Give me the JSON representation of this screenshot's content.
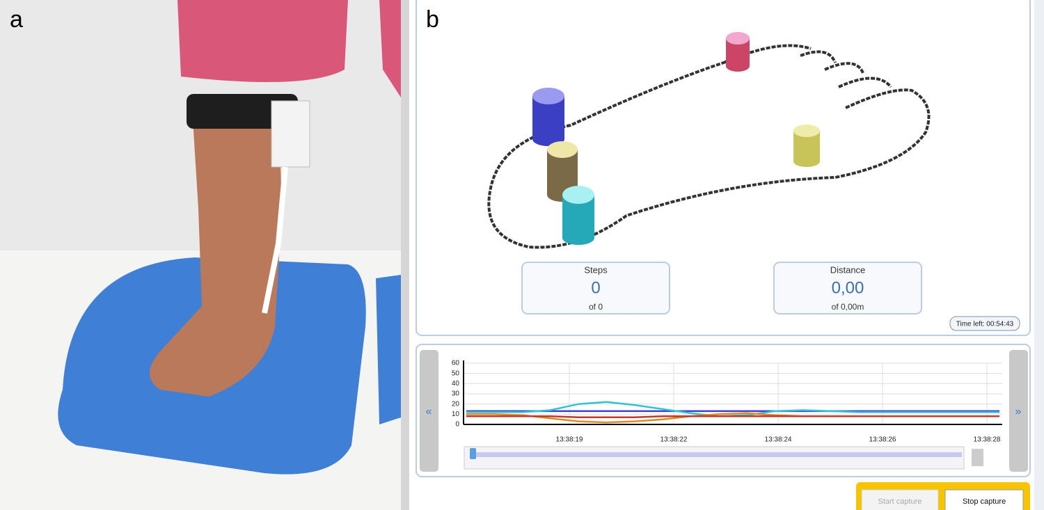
{
  "panel_labels": {
    "a": "a",
    "b": "b"
  },
  "steps": {
    "title": "Steps",
    "value": "0",
    "sub": "of 0"
  },
  "distance": {
    "title": "Distance",
    "value": "0,00",
    "sub": "of 0,00m"
  },
  "time_left": "Time left: 00:54:43",
  "plot": {
    "ylim": [
      0,
      60
    ],
    "yticks": [
      0,
      10,
      20,
      30,
      40,
      50,
      60
    ],
    "categories": [
      "13:38:19",
      "13:38:22",
      "13:38:24",
      "13:38:26",
      "13:38:28"
    ],
    "series": [
      {
        "color": "#3a3fd0",
        "values": [
          13,
          13,
          13,
          13,
          13,
          13,
          13,
          13,
          13,
          13,
          13,
          13,
          13,
          13,
          13,
          13,
          13,
          13,
          13,
          13
        ]
      },
      {
        "color": "#2ec4d6",
        "values": [
          12,
          12,
          12,
          14,
          20,
          22,
          19,
          15,
          11,
          8,
          9,
          13,
          14,
          13,
          12,
          12,
          12,
          12,
          12,
          12
        ]
      },
      {
        "color": "#e08a1e",
        "values": [
          10,
          10,
          9,
          6,
          3,
          2,
          3,
          5,
          8,
          10,
          11,
          9,
          8,
          8,
          8,
          8,
          8,
          8,
          8,
          8
        ]
      },
      {
        "color": "#c0392b",
        "values": [
          8,
          8,
          8,
          8,
          7,
          7,
          7,
          8,
          8,
          8,
          8,
          8,
          8,
          8,
          8,
          8,
          8,
          8,
          8,
          8
        ]
      }
    ]
  },
  "buttons": {
    "start": "Start capture",
    "stop": "Stop capture"
  }
}
